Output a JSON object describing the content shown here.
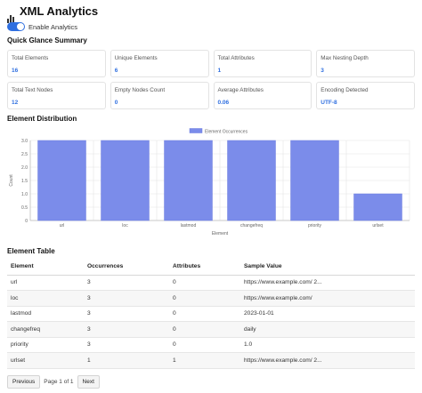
{
  "app": {
    "title": "XML Analytics",
    "title_icon": "bar-chart-icon",
    "toggle_label": "Enable Analytics",
    "toggle_on": true,
    "accent": "#2f6fe0"
  },
  "summary": {
    "heading": "Quick Glance Summary",
    "cards": [
      {
        "label": "Total Elements",
        "value": "16"
      },
      {
        "label": "Unique Elements",
        "value": "6"
      },
      {
        "label": "Total Attributes",
        "value": "1"
      },
      {
        "label": "Max Nesting Depth",
        "value": "3"
      },
      {
        "label": "Total Text Nodes",
        "value": "12"
      },
      {
        "label": "Empty Nodes Count",
        "value": "0"
      },
      {
        "label": "Average Attributes",
        "value": "0.06"
      },
      {
        "label": "Encoding Detected",
        "value": "UTF-8"
      }
    ]
  },
  "distribution": {
    "heading": "Element Distribution"
  },
  "chart_data": {
    "type": "bar",
    "title": "",
    "categories": [
      "url",
      "loc",
      "lastmod",
      "changefreq",
      "priority",
      "urlset"
    ],
    "series": [
      {
        "name": "Element Occurrences",
        "values": [
          3,
          3,
          3,
          3,
          3,
          1
        ],
        "color": "#7b8cea"
      }
    ],
    "xlabel": "Element",
    "ylabel": "Count",
    "ylim": [
      0,
      3
    ],
    "yticks": [
      "0",
      "0.5",
      "1.0",
      "1.5",
      "2.0",
      "2.5",
      "3.0"
    ],
    "legend": "top",
    "grid": true
  },
  "table": {
    "heading": "Element Table",
    "columns": [
      "Element",
      "Occurrences",
      "Attributes",
      "Sample Value"
    ],
    "rows": [
      [
        "url",
        "3",
        "0",
        "https://www.example.com/ 2..."
      ],
      [
        "loc",
        "3",
        "0",
        "https://www.example.com/"
      ],
      [
        "lastmod",
        "3",
        "0",
        "2023-01-01"
      ],
      [
        "changefreq",
        "3",
        "0",
        "daily"
      ],
      [
        "priority",
        "3",
        "0",
        "1.0"
      ],
      [
        "urlset",
        "1",
        "1",
        "https://www.example.com/ 2..."
      ]
    ]
  },
  "pager": {
    "prev_label": "Previous",
    "info": "Page 1 of 1",
    "next_label": "Next"
  }
}
